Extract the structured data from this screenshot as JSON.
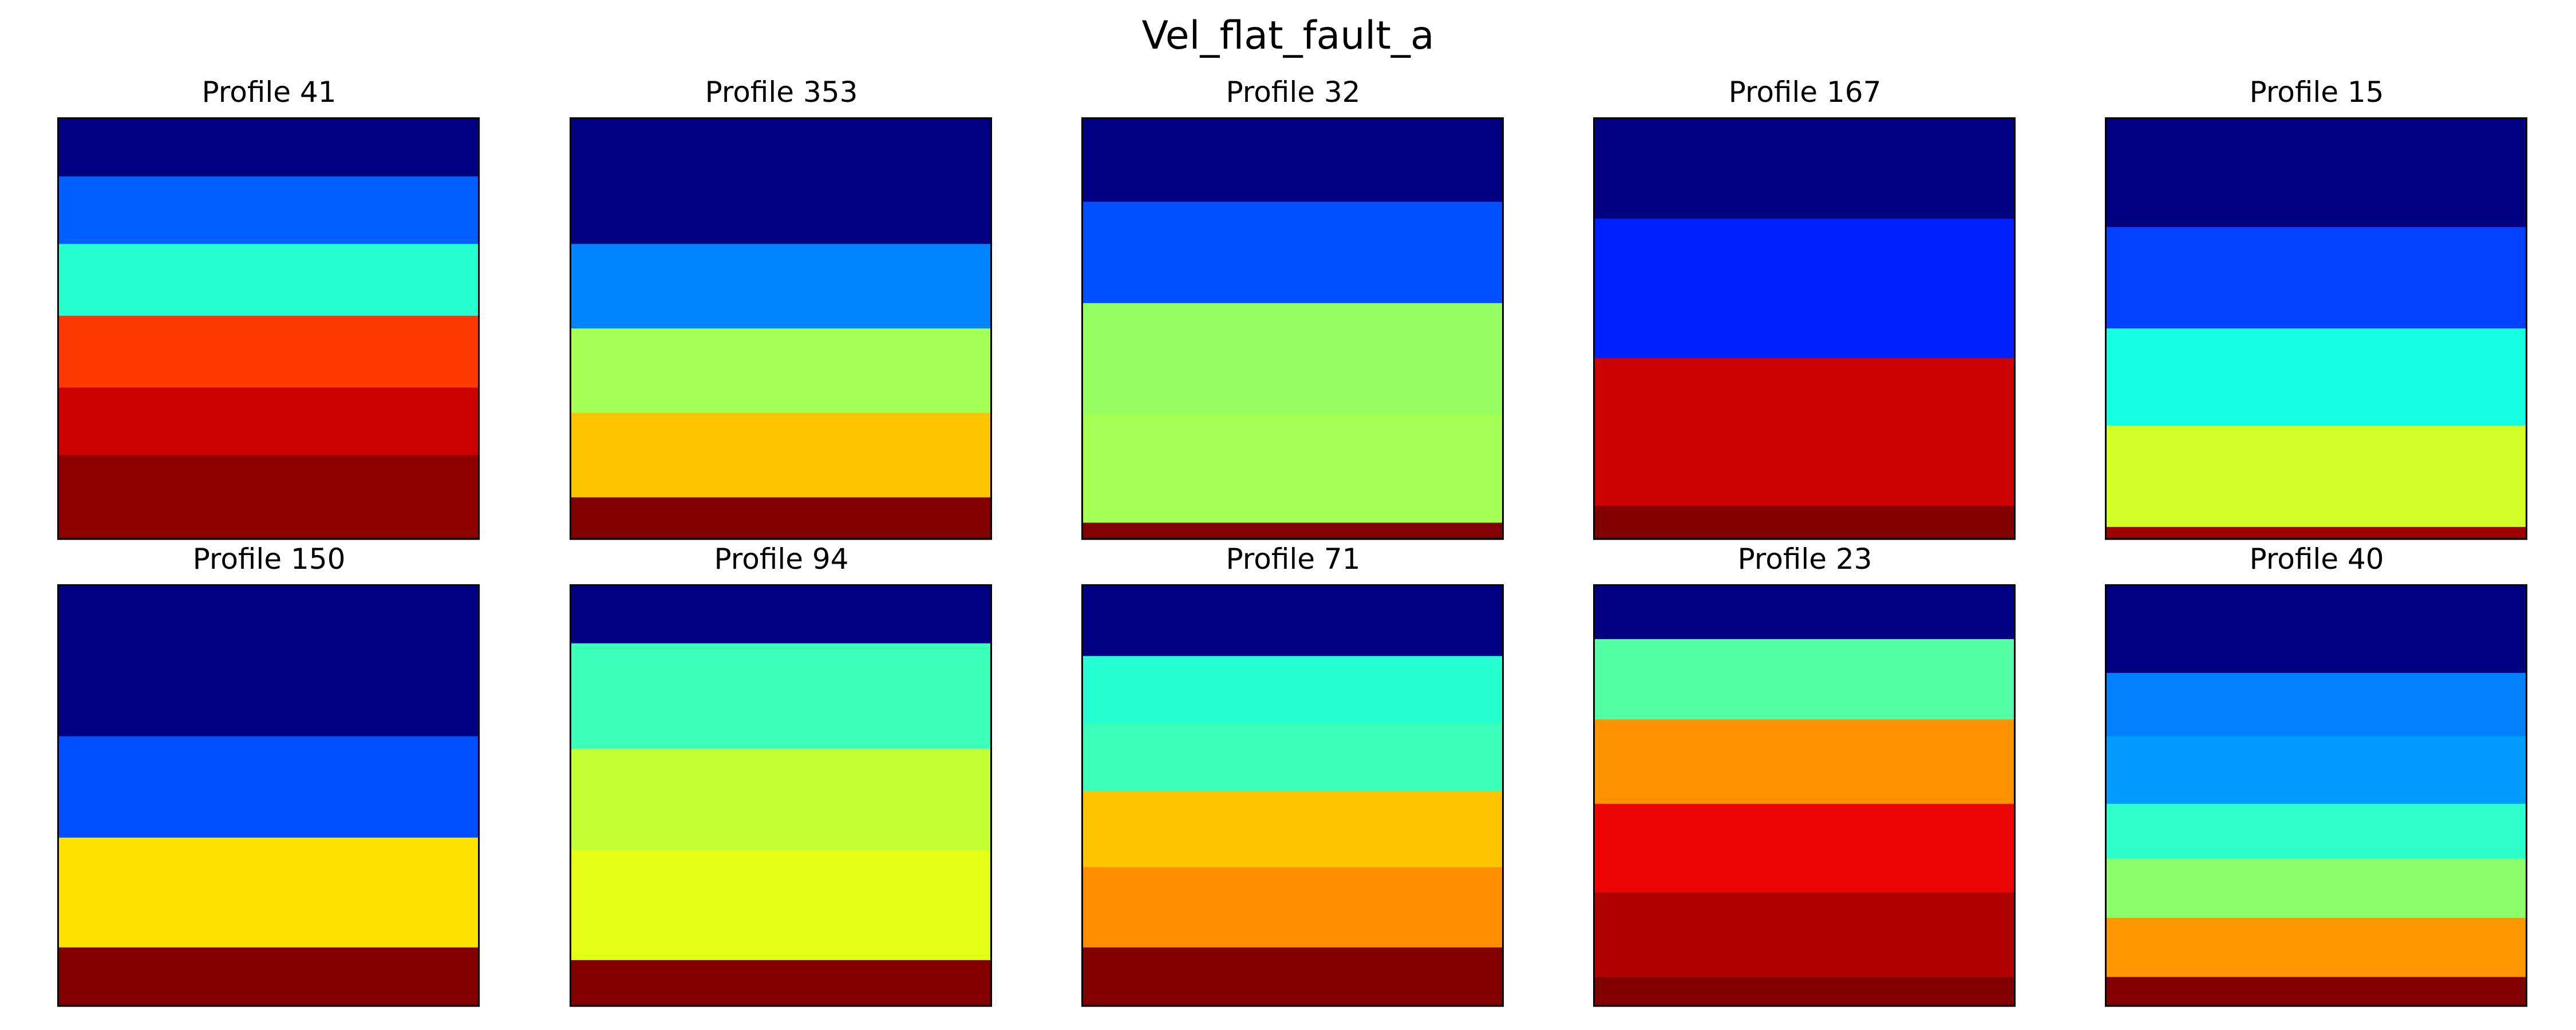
{
  "title": "Vel_flat_fault_a",
  "chart_data": {
    "type": "heatmap",
    "title": "Vel_flat_fault_a",
    "panels": [
      {
        "title": "Profile 41",
        "layers": [
          {
            "depth": [
              0.0,
              0.14
            ],
            "color": "#000080"
          },
          {
            "depth": [
              0.14,
              0.3
            ],
            "color": "#0060ff"
          },
          {
            "depth": [
              0.3,
              0.47
            ],
            "color": "#25ffd2"
          },
          {
            "depth": [
              0.47,
              0.64
            ],
            "color": "#ff3800"
          },
          {
            "depth": [
              0.64,
              0.8
            ],
            "color": "#cd0000"
          },
          {
            "depth": [
              0.8,
              1.0
            ],
            "color": "#8f0000"
          }
        ]
      },
      {
        "title": "Profile 353",
        "layers": [
          {
            "depth": [
              0.0,
              0.3
            ],
            "color": "#000080"
          },
          {
            "depth": [
              0.3,
              0.5
            ],
            "color": "#0084ff"
          },
          {
            "depth": [
              0.5,
              0.7
            ],
            "color": "#a4ff53"
          },
          {
            "depth": [
              0.7,
              0.9
            ],
            "color": "#ffc400"
          },
          {
            "depth": [
              0.9,
              1.0
            ],
            "color": "#800000"
          }
        ]
      },
      {
        "title": "Profile 32",
        "layers": [
          {
            "depth": [
              0.0,
              0.2
            ],
            "color": "#000080"
          },
          {
            "depth": [
              0.2,
              0.44
            ],
            "color": "#0050ff"
          },
          {
            "depth": [
              0.44,
              0.7
            ],
            "color": "#94ff63"
          },
          {
            "depth": [
              0.7,
              0.96
            ],
            "color": "#a4ff53"
          },
          {
            "depth": [
              0.96,
              1.0
            ],
            "color": "#800000"
          }
        ]
      },
      {
        "title": "Profile 167",
        "layers": [
          {
            "depth": [
              0.0,
              0.24
            ],
            "color": "#000080"
          },
          {
            "depth": [
              0.24,
              0.57
            ],
            "color": "#0020ff"
          },
          {
            "depth": [
              0.57,
              0.92
            ],
            "color": "#cd0000"
          },
          {
            "depth": [
              0.92,
              1.0
            ],
            "color": "#800000"
          }
        ]
      },
      {
        "title": "Profile 15",
        "layers": [
          {
            "depth": [
              0.0,
              0.26
            ],
            "color": "#000080"
          },
          {
            "depth": [
              0.26,
              0.5
            ],
            "color": "#0040ff"
          },
          {
            "depth": [
              0.5,
              0.73
            ],
            "color": "#15ffe2"
          },
          {
            "depth": [
              0.73,
              0.97
            ],
            "color": "#d1ff26"
          },
          {
            "depth": [
              0.97,
              1.0
            ],
            "color": "#9f0000"
          }
        ]
      },
      {
        "title": "Profile 150",
        "layers": [
          {
            "depth": [
              0.0,
              0.36
            ],
            "color": "#000080"
          },
          {
            "depth": [
              0.36,
              0.6
            ],
            "color": "#0050ff"
          },
          {
            "depth": [
              0.6,
              0.86
            ],
            "color": "#ffe200"
          },
          {
            "depth": [
              0.86,
              1.0
            ],
            "color": "#800000"
          }
        ]
      },
      {
        "title": "Profile 94",
        "layers": [
          {
            "depth": [
              0.0,
              0.14
            ],
            "color": "#000080"
          },
          {
            "depth": [
              0.14,
              0.39
            ],
            "color": "#3cffba"
          },
          {
            "depth": [
              0.39,
              0.63
            ],
            "color": "#c4ff33"
          },
          {
            "depth": [
              0.63,
              0.89
            ],
            "color": "#e4ff13"
          },
          {
            "depth": [
              0.89,
              1.0
            ],
            "color": "#800000"
          }
        ]
      },
      {
        "title": "Profile 71",
        "layers": [
          {
            "depth": [
              0.0,
              0.17
            ],
            "color": "#000080"
          },
          {
            "depth": [
              0.17,
              0.33
            ],
            "color": "#25ffd2"
          },
          {
            "depth": [
              0.33,
              0.49
            ],
            "color": "#3cffba"
          },
          {
            "depth": [
              0.49,
              0.67
            ],
            "color": "#ffc400"
          },
          {
            "depth": [
              0.67,
              0.86
            ],
            "color": "#ff8d00"
          },
          {
            "depth": [
              0.86,
              1.0
            ],
            "color": "#800000"
          }
        ]
      },
      {
        "title": "Profile 23",
        "layers": [
          {
            "depth": [
              0.0,
              0.13
            ],
            "color": "#000080"
          },
          {
            "depth": [
              0.13,
              0.32
            ],
            "color": "#53ffa4"
          },
          {
            "depth": [
              0.32,
              0.52
            ],
            "color": "#ff9400"
          },
          {
            "depth": [
              0.52,
              0.73
            ],
            "color": "#ed0400"
          },
          {
            "depth": [
              0.73,
              0.93
            ],
            "color": "#b10000"
          },
          {
            "depth": [
              0.93,
              1.0
            ],
            "color": "#800000"
          }
        ]
      },
      {
        "title": "Profile 40",
        "layers": [
          {
            "depth": [
              0.0,
              0.21
            ],
            "color": "#000080"
          },
          {
            "depth": [
              0.21,
              0.36
            ],
            "color": "#0080ff"
          },
          {
            "depth": [
              0.36,
              0.52
            ],
            "color": "#009cff"
          },
          {
            "depth": [
              0.52,
              0.65
            ],
            "color": "#2cffca"
          },
          {
            "depth": [
              0.65,
              0.79
            ],
            "color": "#8dff69"
          },
          {
            "depth": [
              0.79,
              0.93
            ],
            "color": "#ff9800"
          },
          {
            "depth": [
              0.93,
              1.0
            ],
            "color": "#800000"
          }
        ]
      }
    ]
  }
}
